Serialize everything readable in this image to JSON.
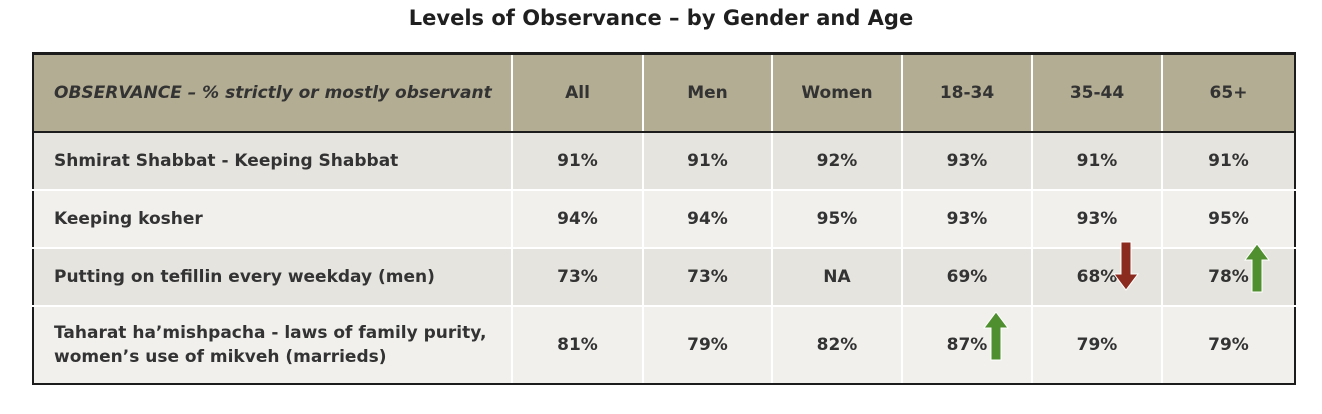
{
  "title": "Levels of Observance – by Gender and Age",
  "colors": {
    "header_bg": "#b3ad93",
    "row_dark": "#e6e4df",
    "row_light": "#f1f0ed",
    "arrow_up": "#4f8f2f",
    "arrow_down": "#8b2a1e"
  },
  "chart_data": {
    "type": "table",
    "title": "Levels of Observance – by Gender and Age",
    "columns": [
      "OBSERVANCE – % strictly or mostly observant",
      "All",
      "Men",
      "Women",
      "18-34",
      "35-44",
      "65+"
    ],
    "rows": [
      {
        "label": "Shmirat Shabbat - Keeping Shabbat",
        "values": [
          "91%",
          "91%",
          "92%",
          "93%",
          "91%",
          "91%"
        ],
        "arrows": [
          null,
          null,
          null,
          null,
          null,
          null
        ]
      },
      {
        "label": "Keeping kosher",
        "values": [
          "94%",
          "94%",
          "95%",
          "93%",
          "93%",
          "95%"
        ],
        "arrows": [
          null,
          null,
          null,
          null,
          null,
          null
        ]
      },
      {
        "label": "Putting on tefillin every weekday (men)",
        "values": [
          "73%",
          "73%",
          "NA",
          "69%",
          "68%",
          "78%"
        ],
        "arrows": [
          null,
          null,
          null,
          null,
          "down",
          "up"
        ]
      },
      {
        "label": "Taharat ha’mishpacha - laws of family purity, women’s use of mikveh (marrieds)",
        "values": [
          "81%",
          "79%",
          "82%",
          "87%",
          "79%",
          "79%"
        ],
        "arrows": [
          null,
          null,
          null,
          "up",
          null,
          null
        ]
      }
    ]
  }
}
